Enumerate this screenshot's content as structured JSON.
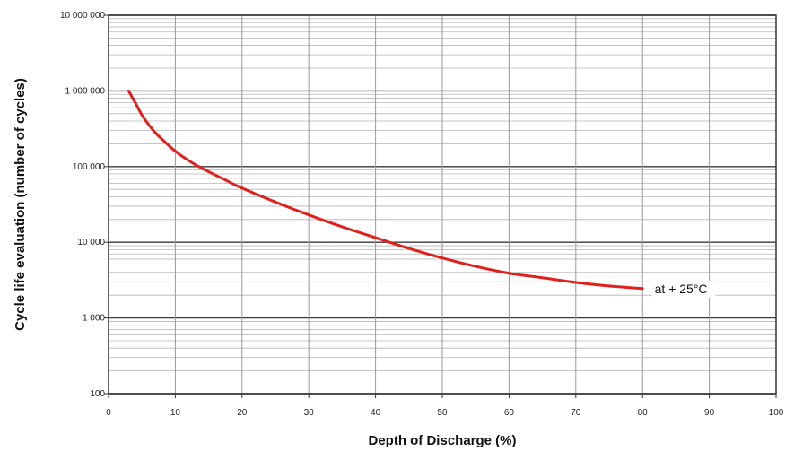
{
  "chart_data": {
    "type": "line",
    "title": "",
    "xlabel": "Depth of Discharge (%)",
    "ylabel": "Cycle life evaluation (number of cycles)",
    "xlim": [
      0,
      100
    ],
    "ylim": [
      100,
      10000000
    ],
    "yscale": "log",
    "grid": true,
    "x_ticks": [
      0,
      10,
      20,
      30,
      40,
      50,
      60,
      70,
      80,
      90,
      100
    ],
    "y_ticks": [
      100,
      1000,
      10000,
      100000,
      1000000,
      10000000
    ],
    "y_tick_labels": [
      "100",
      "1 000",
      "10 000",
      "100 000",
      "1 000 000",
      "10 000 000"
    ],
    "series": [
      {
        "color": "#e0201c",
        "x": [
          3,
          4,
          5,
          6,
          7,
          8,
          10,
          12,
          14,
          17,
          20,
          25,
          30,
          35,
          40,
          45,
          50,
          55,
          60,
          65,
          70,
          75,
          80
        ],
        "y": [
          1000000,
          700000,
          480000,
          360000,
          280000,
          230000,
          160000,
          120000,
          95000,
          70000,
          52000,
          34000,
          23000,
          16000,
          11500,
          8300,
          6200,
          4800,
          3900,
          3400,
          2950,
          2650,
          2450
        ]
      }
    ],
    "annotations": [
      {
        "text": "at + 25°C",
        "x": 81,
        "y": 2450
      }
    ]
  }
}
